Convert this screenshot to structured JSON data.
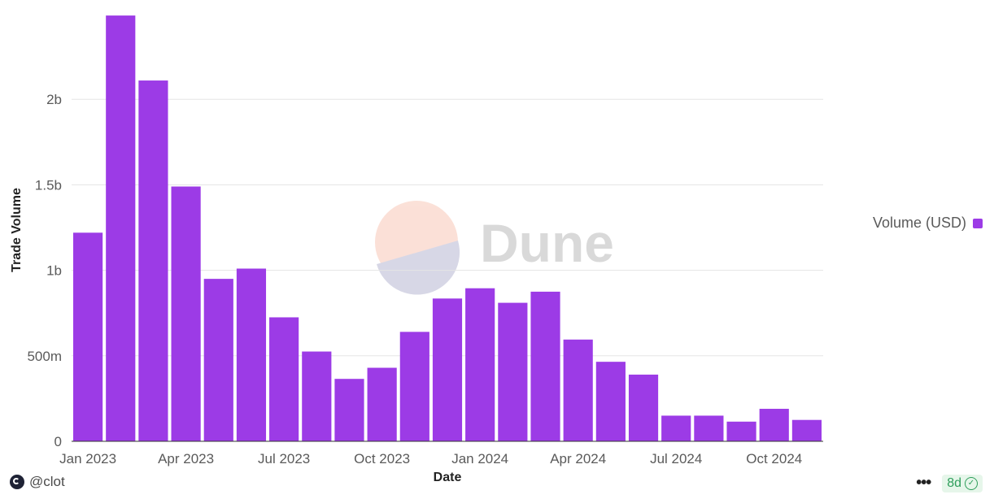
{
  "chart_data": {
    "type": "bar",
    "categories": [
      "Jan 2023",
      "Feb 2023",
      "Mar 2023",
      "Apr 2023",
      "May 2023",
      "Jun 2023",
      "Jul 2023",
      "Aug 2023",
      "Sep 2023",
      "Oct 2023",
      "Nov 2023",
      "Dec 2023",
      "Jan 2024",
      "Feb 2024",
      "Mar 2024",
      "Apr 2024",
      "May 2024",
      "Jun 2024",
      "Jul 2024",
      "Aug 2024",
      "Sep 2024",
      "Oct 2024",
      "Nov 2024"
    ],
    "series": [
      {
        "name": "Volume (USD)",
        "color": "#9c3be6",
        "values": [
          1220000000,
          2490000000,
          2110000000,
          1490000000,
          950000000,
          1010000000,
          725000000,
          525000000,
          365000000,
          430000000,
          640000000,
          835000000,
          895000000,
          810000000,
          875000000,
          595000000,
          465000000,
          390000000,
          150000000,
          150000000,
          115000000,
          190000000,
          125000000
        ]
      }
    ],
    "x_tick_labels": [
      "Jan 2023",
      "Apr 2023",
      "Jul 2023",
      "Oct 2023",
      "Jan 2024",
      "Apr 2024",
      "Jul 2024",
      "Oct 2024"
    ],
    "y_ticks": [
      {
        "value": 0,
        "label": "0"
      },
      {
        "value": 500000000,
        "label": "500m"
      },
      {
        "value": 1000000000,
        "label": "1b"
      },
      {
        "value": 1500000000,
        "label": "1.5b"
      },
      {
        "value": 2000000000,
        "label": "2b"
      }
    ],
    "ylim": [
      0,
      2500000000
    ],
    "xlabel": "Date",
    "ylabel": "Trade Volume",
    "grid": true,
    "legend_position": "right"
  },
  "watermark": {
    "text": "Dune"
  },
  "footer": {
    "author": "@clot",
    "age": "8d",
    "more_icon": "ellipsis-icon",
    "status_icon": "check-circle-icon"
  },
  "colors": {
    "bar": "#9c3be6",
    "grid": "#e5e5e5",
    "status_green": "#2e9e5b"
  }
}
